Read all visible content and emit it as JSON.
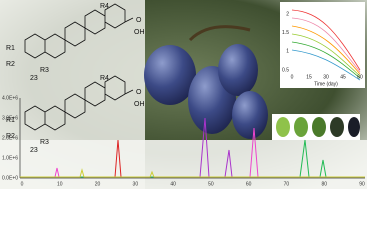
{
  "structures": [
    {
      "labels": [
        "R4",
        "R1",
        "R2",
        "R3",
        "23",
        "OH",
        "O"
      ]
    },
    {
      "labels": [
        "R4",
        "R1",
        "R2",
        "R3",
        "23",
        "OH",
        "O"
      ]
    }
  ],
  "chromatogram": {
    "yticks": [
      "4.0E+6",
      "3.0E+6",
      "2.0E+6",
      "1.0E+6",
      "0.0E+0"
    ],
    "xticks": [
      "0",
      "10",
      "20",
      "30",
      "40",
      "50",
      "60",
      "70",
      "80",
      "90"
    ]
  },
  "inset": {
    "x_label": "Time (day)",
    "yticks": [
      "2",
      "1.5",
      "1",
      "0.5"
    ],
    "xticks": [
      "0",
      "15",
      "30",
      "45",
      "60"
    ]
  }
}
